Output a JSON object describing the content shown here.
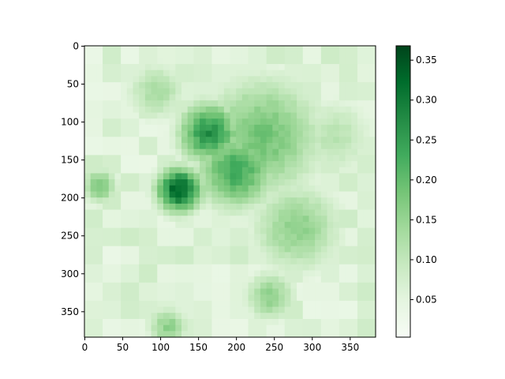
{
  "chart_data": {
    "type": "heatmap",
    "title": "",
    "xlabel": "",
    "ylabel": "",
    "image_size": [
      384,
      384
    ],
    "xlim": [
      0,
      383
    ],
    "ylim": [
      383,
      0
    ],
    "x_ticks": [
      "0",
      "50",
      "100",
      "150",
      "200",
      "250",
      "300",
      "350"
    ],
    "y_ticks": [
      "0",
      "50",
      "100",
      "150",
      "200",
      "250",
      "300",
      "350"
    ],
    "colormap": "Greens",
    "colormap_colors": [
      "#f7fcf5",
      "#e5f5e0",
      "#c7e9c0",
      "#a1d99b",
      "#74c476",
      "#41ab5d",
      "#238b45",
      "#006d2c",
      "#00441b"
    ],
    "value_range": [
      0.003,
      0.368
    ],
    "colorbar_ticks": [
      "0.05",
      "0.10",
      "0.15",
      "0.20",
      "0.25",
      "0.30",
      "0.35"
    ],
    "hotspots": [
      {
        "x": 125,
        "y": 190,
        "value": 0.36,
        "spread": 22
      },
      {
        "x": 165,
        "y": 115,
        "value": 0.29,
        "spread": 30
      },
      {
        "x": 200,
        "y": 165,
        "value": 0.25,
        "spread": 38
      },
      {
        "x": 235,
        "y": 120,
        "value": 0.2,
        "spread": 60
      },
      {
        "x": 280,
        "y": 240,
        "value": 0.17,
        "spread": 45
      },
      {
        "x": 245,
        "y": 330,
        "value": 0.17,
        "spread": 25
      },
      {
        "x": 20,
        "y": 185,
        "value": 0.19,
        "spread": 18
      },
      {
        "x": 110,
        "y": 370,
        "value": 0.17,
        "spread": 20
      },
      {
        "x": 95,
        "y": 60,
        "value": 0.14,
        "spread": 30
      },
      {
        "x": 330,
        "y": 120,
        "value": 0.12,
        "spread": 40
      }
    ],
    "background_value": 0.06
  }
}
